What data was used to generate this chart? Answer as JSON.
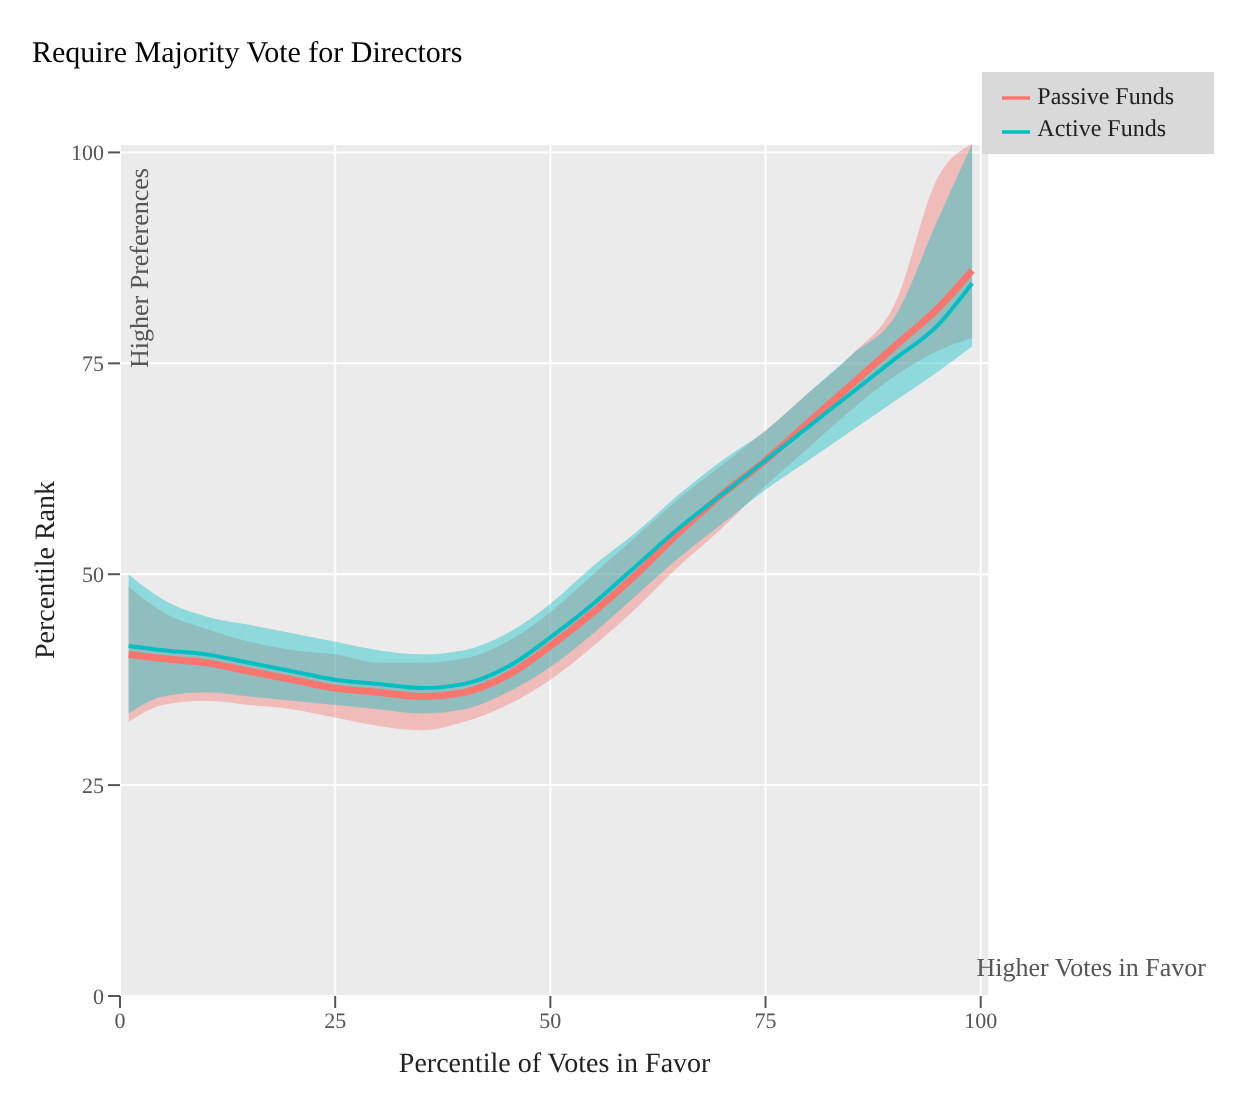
{
  "chart_data": {
    "type": "line",
    "title": "Require Majority Vote for Directors",
    "xlabel": "Percentile of Votes in Favor",
    "ylabel": "Percentile Rank",
    "annotations": [
      "Higher Preferences",
      "Higher Votes in Favor"
    ],
    "x": [
      1,
      5,
      10,
      15,
      20,
      25,
      30,
      35,
      40,
      45,
      50,
      55,
      60,
      65,
      70,
      75,
      80,
      85,
      90,
      95,
      99
    ],
    "series": [
      {
        "name": "Passive Funds",
        "color": "#f8766d",
        "values": [
          40.5,
          40,
          39.5,
          38.5,
          37.5,
          36.5,
          36,
          35.5,
          36,
          38,
          41.5,
          45.5,
          50,
          55,
          59.5,
          63.5,
          68,
          72.5,
          77,
          81.5,
          86
        ],
        "lower": [
          32.5,
          34.5,
          35,
          34.5,
          34,
          33,
          32,
          31.5,
          32.5,
          34.5,
          37.5,
          41.5,
          46,
          51,
          55.5,
          60.5,
          65,
          69.5,
          73.5,
          76.5,
          78
        ],
        "upper": [
          48.5,
          45.5,
          43.5,
          42,
          41,
          40.5,
          39.5,
          39.5,
          40,
          42,
          45.5,
          50,
          54.5,
          59,
          63,
          67,
          71.5,
          76,
          82,
          97,
          101
        ]
      },
      {
        "name": "Active Funds",
        "color": "#00bfc4",
        "values": [
          41.5,
          41,
          40.5,
          39.5,
          38.5,
          37.5,
          37,
          36.5,
          37,
          39,
          42.5,
          46.5,
          51,
          55.5,
          59.5,
          63.5,
          67.5,
          71.5,
          75.5,
          79.5,
          84.5
        ],
        "lower": [
          33.5,
          35.5,
          36,
          35.5,
          35,
          34.5,
          34,
          33.5,
          34,
          36,
          39,
          43,
          47.5,
          52,
          56,
          60,
          63.5,
          67,
          70.5,
          74,
          77
        ],
        "upper": [
          50,
          47,
          45,
          44,
          43,
          42,
          41,
          40.5,
          41,
          43,
          46.5,
          51,
          55,
          59.5,
          63.5,
          67,
          71.5,
          76,
          80.5,
          92,
          101
        ]
      }
    ],
    "xlim": [
      0,
      101
    ],
    "ylim": [
      0,
      101
    ],
    "xticks": [
      0,
      25,
      50,
      75,
      100
    ],
    "yticks": [
      0,
      25,
      50,
      75,
      100
    ],
    "grid": true,
    "legend": "top right"
  }
}
